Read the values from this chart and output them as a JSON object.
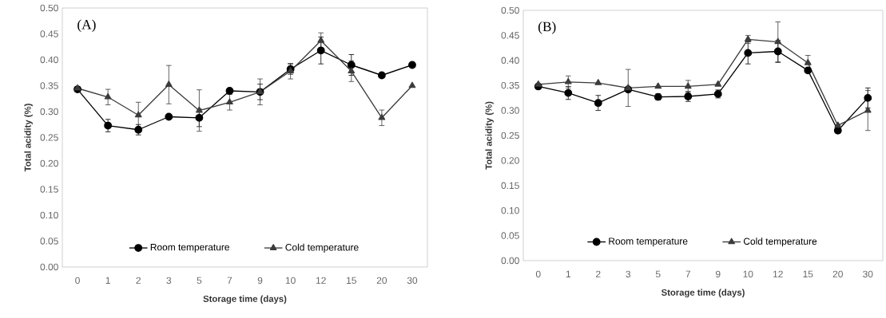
{
  "chart_data": [
    {
      "type": "line",
      "annotations": [
        "(A)"
      ],
      "xlabel": "Storage time (days)",
      "ylabel": "Total acidity  (%)",
      "categories": [
        "0",
        "1",
        "2",
        "3",
        "5",
        "7",
        "9",
        "10",
        "12",
        "15",
        "20",
        "30"
      ],
      "ylim": [
        0,
        0.5
      ],
      "yticks": [
        {
          "value": 0,
          "label": "0.00"
        },
        {
          "value": 0.05,
          "label": "0.05"
        },
        {
          "value": 0.1,
          "label": "0.10"
        },
        {
          "value": 0.15,
          "label": "0.15"
        },
        {
          "value": 0.2,
          "label": "0.20"
        },
        {
          "value": 0.25,
          "label": "0.25"
        },
        {
          "value": 0.3,
          "label": "0.30"
        },
        {
          "value": 0.35,
          "label": "0.35"
        },
        {
          "value": 0.4,
          "label": "0.40"
        },
        {
          "value": 0.45,
          "label": "0.45"
        },
        {
          "value": 0.5,
          "label": "0.50"
        }
      ],
      "legend": "bottom",
      "grid": false,
      "series": [
        {
          "name": "Room temperature",
          "color": "#000000",
          "marker": "circle",
          "values": [
            0.343,
            0.273,
            0.265,
            0.29,
            0.288,
            0.34,
            0.338,
            0.382,
            0.418,
            0.39,
            0.37,
            0.39
          ],
          "errors": [
            0.005,
            0.012,
            0.01,
            null,
            0.017,
            null,
            0.015,
            0.01,
            0.026,
            0.02,
            null,
            null
          ]
        },
        {
          "name": "Cold temperature",
          "color": "#3c3c3c",
          "marker": "triangle",
          "values": [
            0.345,
            0.328,
            0.293,
            0.352,
            0.302,
            0.318,
            0.338,
            0.378,
            0.437,
            0.378,
            0.288,
            0.35
          ],
          "errors": [
            null,
            0.015,
            0.025,
            0.037,
            0.04,
            0.015,
            0.025,
            0.015,
            0.015,
            0.02,
            0.015,
            null
          ]
        }
      ]
    },
    {
      "type": "line",
      "annotations": [
        "(B)"
      ],
      "xlabel": "Storage time (days)",
      "ylabel": "Total acidity  (%)",
      "categories": [
        "0",
        "1",
        "2",
        "3",
        "5",
        "7",
        "9",
        "10",
        "12",
        "15",
        "20",
        "30"
      ],
      "ylim": [
        0,
        0.5
      ],
      "yticks": [
        {
          "value": 0,
          "label": "0.00"
        },
        {
          "value": 0.05,
          "label": "0.05"
        },
        {
          "value": 0.1,
          "label": "0.10"
        },
        {
          "value": 0.15,
          "label": "0.15"
        },
        {
          "value": 0.2,
          "label": "0.20"
        },
        {
          "value": 0.25,
          "label": "0.25"
        },
        {
          "value": 0.3,
          "label": "0.30"
        },
        {
          "value": 0.35,
          "label": "0.35"
        },
        {
          "value": 0.4,
          "label": "0.40"
        },
        {
          "value": 0.45,
          "label": "0.45"
        },
        {
          "value": 0.5,
          "label": "0.50"
        }
      ],
      "legend": "bottom",
      "grid": false,
      "series": [
        {
          "name": "Room temperature",
          "color": "#000000",
          "marker": "circle",
          "values": [
            0.348,
            0.335,
            0.315,
            0.342,
            0.327,
            0.328,
            0.333,
            0.415,
            0.418,
            0.38,
            0.26,
            0.325
          ],
          "errors": [
            0.005,
            0.013,
            0.015,
            null,
            0.006,
            0.01,
            0.008,
            0.022,
            0.022,
            0.005,
            0.005,
            0.02
          ]
        },
        {
          "name": "Cold temperature",
          "color": "#3c3c3c",
          "marker": "triangle",
          "values": [
            0.352,
            0.357,
            0.355,
            0.345,
            0.348,
            0.348,
            0.352,
            0.442,
            0.437,
            0.395,
            0.27,
            0.3
          ],
          "errors": [
            null,
            0.012,
            null,
            0.037,
            null,
            0.012,
            null,
            0.008,
            0.04,
            [
              0.395,
              0.41
            ],
            null,
            0.04
          ]
        }
      ]
    }
  ]
}
